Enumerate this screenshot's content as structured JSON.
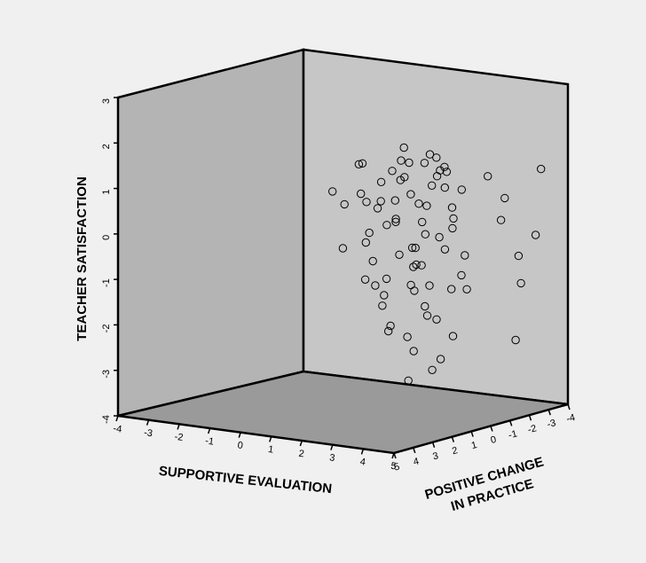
{
  "chart_data": {
    "type": "scatter",
    "dimensions": 3,
    "title": "",
    "axes": {
      "x": {
        "label": "SUPPORTIVE EVALUATION",
        "range": [
          -4,
          5
        ],
        "ticks": [
          "-4",
          "-3",
          "-2",
          "-1",
          "0",
          "1",
          "2",
          "3",
          "4",
          "5"
        ]
      },
      "y": {
        "label_lines": [
          "POSITIVE CHANGE",
          "IN PRACTICE"
        ],
        "range": [
          -4,
          5
        ],
        "ticks": [
          "5",
          "4",
          "3",
          "2",
          "1",
          "0",
          "-1",
          "-2",
          "-3",
          "-4"
        ]
      },
      "z": {
        "label": "TEACHER SATISFACTION",
        "range": [
          -4,
          3
        ],
        "ticks": [
          "3",
          "2",
          "1",
          "0",
          "-1",
          "-2",
          "-3",
          "-4"
        ]
      }
    },
    "marker": "open-circle",
    "colors": {
      "background": "#f0f0f0",
      "left_wall": "#b4b4b4",
      "right_wall": "#c6c6c6",
      "floor": "#9a9a9a",
      "marker": "#000000"
    },
    "grid": false,
    "legend": "none",
    "points_description": "dense cluster near supportive evaluation 3-4, positive change 0-2, teacher satisfaction -2 to 2",
    "points": [
      [
        3.6,
        1.2,
        1.8
      ],
      [
        3.2,
        1.6,
        1.5
      ],
      [
        4.0,
        0.8,
        1.7
      ],
      [
        3.8,
        1.4,
        0.9
      ],
      [
        3.4,
        0.5,
        1.2
      ],
      [
        3.9,
        1.8,
        0.6
      ],
      [
        3.5,
        1.0,
        0.2
      ],
      [
        3.1,
        0.7,
        0.8
      ],
      [
        4.2,
        1.1,
        1.3
      ],
      [
        3.7,
        0.3,
        -0.2
      ],
      [
        3.3,
        1.3,
        -0.5
      ],
      [
        3.6,
        1.9,
        -0.8
      ],
      [
        4.1,
        0.6,
        -1.0
      ],
      [
        3.8,
        1.5,
        -1.3
      ],
      [
        3.5,
        0.9,
        -1.6
      ],
      [
        3.2,
        1.2,
        -0.1
      ],
      [
        2.9,
        0.8,
        1.0
      ],
      [
        2.6,
        1.1,
        0.4
      ],
      [
        2.8,
        1.6,
        1.6
      ],
      [
        2.4,
        0.6,
        -0.4
      ],
      [
        2.2,
        1.4,
        0.7
      ],
      [
        2.0,
        0.9,
        1.2
      ],
      [
        1.8,
        1.2,
        0.1
      ],
      [
        1.6,
        0.7,
        -0.6
      ],
      [
        4.4,
        1.7,
        0.3
      ],
      [
        4.3,
        0.4,
        -0.7
      ],
      [
        4.5,
        1.2,
        0.9
      ],
      [
        3.0,
        2.2,
        0.5
      ],
      [
        3.4,
        2.4,
        1.1
      ],
      [
        3.9,
        2.1,
        -0.3
      ],
      [
        3.6,
        -0.3,
        0.4
      ],
      [
        3.1,
        -0.4,
        1.4
      ],
      [
        4.1,
        -0.2,
        -1.1
      ],
      [
        3.7,
        2.6,
        1.6
      ],
      [
        3.3,
        0.1,
        -1.8
      ],
      [
        3.9,
        0.2,
        -2.1
      ],
      [
        3.5,
        1.6,
        -2.3
      ],
      [
        2.7,
        0.3,
        -1.2
      ],
      [
        4.0,
        1.0,
        -2.5
      ],
      [
        3.6,
        0.8,
        -2.8
      ],
      [
        3.2,
        1.4,
        -3.0
      ],
      [
        1.4,
        1.0,
        0.9
      ],
      [
        1.2,
        0.6,
        1.5
      ],
      [
        1.0,
        1.3,
        -0.3
      ],
      [
        0.8,
        0.9,
        0.6
      ],
      [
        2.5,
        2.0,
        -0.9
      ],
      [
        2.3,
        0.2,
        1.9
      ],
      [
        4.6,
        0.7,
        -0.2
      ],
      [
        4.7,
        1.5,
        0.5
      ],
      [
        3.8,
        3.0,
        0.8
      ],
      [
        3.5,
        3.3,
        1.2
      ],
      [
        3.2,
        3.6,
        0.3
      ],
      [
        4.0,
        3.8,
        -0.4
      ],
      [
        3.6,
        4.2,
        1.3
      ],
      [
        3.3,
        -1.2,
        0.9
      ],
      [
        3.0,
        -0.9,
        1.3
      ],
      [
        3.9,
        -1.6,
        1.2
      ],
      [
        4.2,
        -2.0,
        0.7
      ],
      [
        3.7,
        -2.6,
        0.1
      ],
      [
        4.4,
        -2.4,
        -0.6
      ],
      [
        4.1,
        -3.0,
        -1.3
      ],
      [
        3.8,
        -3.2,
        -2.6
      ],
      [
        4.5,
        -3.4,
        1.2
      ],
      [
        4.2,
        -3.6,
        -0.3
      ],
      [
        3.5,
        2.8,
        -1.6
      ],
      [
        3.1,
        2.5,
        -1.0
      ],
      [
        2.8,
        1.8,
        -1.9
      ],
      [
        2.6,
        0.5,
        -2.2
      ],
      [
        1.9,
        1.9,
        1.7
      ],
      [
        2.1,
        1.0,
        -1.5
      ],
      [
        0.6,
        1.2,
        0.9
      ],
      [
        1.1,
        0.3,
        -1.1
      ],
      [
        3.4,
        0.6,
        1.9
      ],
      [
        3.8,
        0.9,
        1.9
      ],
      [
        4.2,
        1.5,
        1.6
      ],
      [
        2.9,
        1.3,
        1.8
      ],
      [
        3.6,
        2.0,
        1.9
      ],
      [
        3.0,
        0.4,
        -0.6
      ],
      [
        3.7,
        1.1,
        -0.9
      ],
      [
        4.0,
        2.3,
        0.1
      ]
    ]
  }
}
